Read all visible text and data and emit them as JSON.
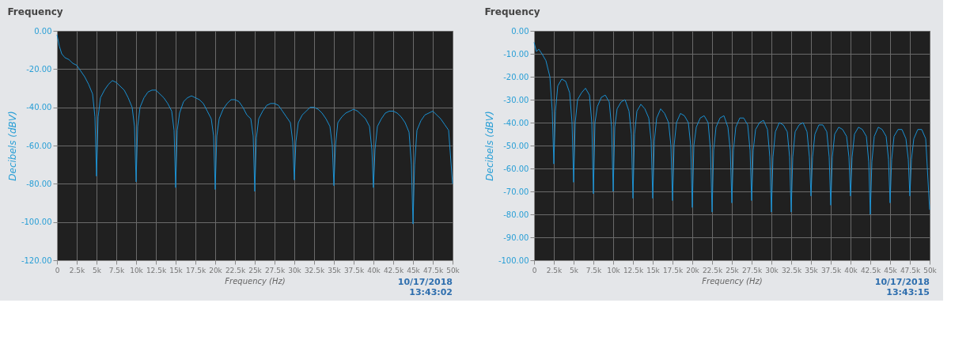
{
  "chart_data": [
    {
      "type": "line",
      "title": "Frequency",
      "xlabel": "Frequency (Hz)",
      "ylabel": "Decibels (dBV)",
      "grid": true,
      "legend": false,
      "marker": "none",
      "line_style": "solid",
      "annotations": [
        "10/17/2018\n13:43:02"
      ],
      "xlim": [
        0,
        50000
      ],
      "ylim": [
        -120,
        0
      ],
      "xticks": [
        0,
        {
          "value": 2500,
          "label": "2.5k"
        },
        {
          "value": 5000,
          "label": "5k"
        },
        {
          "value": 7500,
          "label": "7.5k"
        },
        {
          "value": 10000,
          "label": "10k"
        },
        {
          "value": 12500,
          "label": "12.5k"
        },
        {
          "value": 15000,
          "label": "15k"
        },
        {
          "value": 17500,
          "label": "17.5k"
        },
        {
          "value": 20000,
          "label": "20k"
        },
        {
          "value": 22500,
          "label": "22.5k"
        },
        {
          "value": 25000,
          "label": "25k"
        },
        {
          "value": 27500,
          "label": "27.5k"
        },
        {
          "value": 30000,
          "label": "30k"
        },
        {
          "value": 32500,
          "label": "32.5k"
        },
        {
          "value": 35000,
          "label": "35k"
        },
        {
          "value": 37500,
          "label": "37.5k"
        },
        {
          "value": 40000,
          "label": "40k"
        },
        {
          "value": 42500,
          "label": "42.5k"
        },
        {
          "value": 45000,
          "label": "45k"
        },
        {
          "value": 47500,
          "label": "47.5k"
        },
        {
          "value": 50000,
          "label": "50k"
        }
      ],
      "yticks": [
        {
          "value": 0,
          "label": "0.00"
        },
        {
          "value": -20,
          "label": "-20.00"
        },
        {
          "value": -40,
          "label": "-40.00"
        },
        {
          "value": -60,
          "label": "-60.00"
        },
        {
          "value": -80,
          "label": "-80.00"
        },
        {
          "value": -100,
          "label": "-100.00"
        },
        {
          "value": -120,
          "label": "-120.00"
        }
      ],
      "series": [
        {
          "color": "#1a8fd0",
          "x": [
            0,
            300,
            600,
            1000,
            1500,
            2000,
            2500,
            3000,
            3500,
            4000,
            4500,
            4800,
            5000,
            5200,
            5500,
            6000,
            6500,
            7000,
            7500,
            8000,
            8500,
            9000,
            9500,
            9800,
            10000,
            10200,
            10500,
            11000,
            11500,
            12000,
            12500,
            13000,
            13500,
            14000,
            14500,
            14800,
            15000,
            15200,
            15500,
            16000,
            16500,
            17000,
            17500,
            18000,
            18500,
            19000,
            19500,
            19800,
            20000,
            20200,
            20500,
            21000,
            21500,
            22000,
            22500,
            23000,
            23500,
            24000,
            24500,
            24800,
            25000,
            25200,
            25500,
            26000,
            26500,
            27000,
            27500,
            28000,
            28500,
            29000,
            29500,
            29800,
            30000,
            30200,
            30500,
            31000,
            31500,
            32000,
            32500,
            33000,
            33500,
            34000,
            34500,
            34800,
            35000,
            35200,
            35500,
            36000,
            36500,
            37000,
            37500,
            38000,
            38500,
            39000,
            39500,
            39800,
            40000,
            40200,
            40500,
            41000,
            41500,
            42000,
            42500,
            43000,
            43500,
            44000,
            44500,
            44800,
            45000,
            45200,
            45500,
            46000,
            46500,
            47000,
            47500,
            48000,
            48500,
            49000,
            49500,
            50000
          ],
          "values": [
            -2,
            -8,
            -12,
            -14,
            -15,
            -17,
            -18,
            -21,
            -24,
            -28,
            -33,
            -45,
            -76,
            -45,
            -35,
            -31,
            -28,
            -26,
            -27,
            -29,
            -31,
            -35,
            -40,
            -50,
            -79,
            -50,
            -40,
            -35,
            -32,
            -31,
            -31,
            -33,
            -35,
            -38,
            -42,
            -52,
            -82,
            -52,
            -43,
            -37,
            -35,
            -34,
            -35,
            -36,
            -38,
            -42,
            -46,
            -55,
            -83,
            -55,
            -46,
            -41,
            -38,
            -36,
            -36,
            -37,
            -40,
            -44,
            -46,
            -55,
            -84,
            -56,
            -46,
            -42,
            -39,
            -38,
            -38,
            -39,
            -42,
            -45,
            -48,
            -58,
            -78,
            -58,
            -48,
            -44,
            -42,
            -40,
            -40,
            -41,
            -43,
            -46,
            -50,
            -60,
            -81,
            -60,
            -48,
            -45,
            -43,
            -42,
            -41,
            -42,
            -44,
            -46,
            -50,
            -62,
            -82,
            -62,
            -50,
            -46,
            -43,
            -42,
            -42,
            -43,
            -45,
            -48,
            -53,
            -70,
            -101,
            -70,
            -52,
            -47,
            -44,
            -43,
            -42,
            -44,
            -46,
            -49,
            -52,
            -80
          ]
        }
      ]
    },
    {
      "type": "line",
      "title": "Frequency",
      "xlabel": "Frequency (Hz)",
      "ylabel": "Decibels (dBV)",
      "grid": true,
      "legend": false,
      "marker": "none",
      "line_style": "solid",
      "annotations": [
        "10/17/2018\n13:43:15"
      ],
      "xlim": [
        0,
        50000
      ],
      "ylim": [
        -100,
        0
      ],
      "xticks": [
        0,
        {
          "value": 2500,
          "label": "2.5k"
        },
        {
          "value": 5000,
          "label": "5k"
        },
        {
          "value": 7500,
          "label": "7.5k"
        },
        {
          "value": 10000,
          "label": "10k"
        },
        {
          "value": 12500,
          "label": "12.5k"
        },
        {
          "value": 15000,
          "label": "15k"
        },
        {
          "value": 17500,
          "label": "17.5k"
        },
        {
          "value": 20000,
          "label": "20k"
        },
        {
          "value": 22500,
          "label": "22.5k"
        },
        {
          "value": 25000,
          "label": "25k"
        },
        {
          "value": 27500,
          "label": "27.5k"
        },
        {
          "value": 30000,
          "label": "30k"
        },
        {
          "value": 32500,
          "label": "32.5k"
        },
        {
          "value": 35000,
          "label": "35k"
        },
        {
          "value": 37500,
          "label": "37.5k"
        },
        {
          "value": 40000,
          "label": "40k"
        },
        {
          "value": 42500,
          "label": "42.5k"
        },
        {
          "value": 45000,
          "label": "45k"
        },
        {
          "value": 47500,
          "label": "47.5k"
        },
        {
          "value": 50000,
          "label": "50k"
        }
      ],
      "yticks": [
        {
          "value": 0,
          "label": "0.00"
        },
        {
          "value": -10,
          "label": "-10.00"
        },
        {
          "value": -20,
          "label": "-20.00"
        },
        {
          "value": -30,
          "label": "-30.00"
        },
        {
          "value": -40,
          "label": "-40.00"
        },
        {
          "value": -50,
          "label": "-50.00"
        },
        {
          "value": -60,
          "label": "-60.00"
        },
        {
          "value": -70,
          "label": "-70.00"
        },
        {
          "value": -80,
          "label": "-80.00"
        },
        {
          "value": -90,
          "label": "-90.00"
        },
        {
          "value": -100,
          "label": "-100.00"
        }
      ],
      "series": [
        {
          "color": "#1a8fd0",
          "x": [
            0,
            300,
            600,
            1000,
            1500,
            2000,
            2300,
            2500,
            2700,
            3000,
            3500,
            4000,
            4500,
            4800,
            5000,
            5200,
            5500,
            6000,
            6500,
            7000,
            7300,
            7500,
            7700,
            8000,
            8500,
            9000,
            9500,
            9800,
            10000,
            10200,
            10500,
            11000,
            11500,
            12000,
            12300,
            12500,
            12700,
            13000,
            13500,
            14000,
            14500,
            14800,
            15000,
            15200,
            15500,
            16000,
            16500,
            17000,
            17300,
            17500,
            17700,
            18000,
            18500,
            19000,
            19500,
            19800,
            20000,
            20200,
            20500,
            21000,
            21500,
            22000,
            22300,
            22500,
            22700,
            23000,
            23500,
            24000,
            24500,
            24800,
            25000,
            25200,
            25500,
            26000,
            26500,
            27000,
            27300,
            27500,
            27700,
            28000,
            28500,
            29000,
            29500,
            29800,
            30000,
            30200,
            30500,
            31000,
            31500,
            32000,
            32300,
            32500,
            32700,
            33000,
            33500,
            34000,
            34500,
            34800,
            35000,
            35200,
            35500,
            36000,
            36500,
            37000,
            37300,
            37500,
            37700,
            38000,
            38500,
            39000,
            39500,
            39800,
            40000,
            40200,
            40500,
            41000,
            41500,
            42000,
            42300,
            42500,
            42700,
            43000,
            43500,
            44000,
            44500,
            44800,
            45000,
            45200,
            45500,
            46000,
            46500,
            47000,
            47300,
            47500,
            47700,
            48000,
            48500,
            49000,
            49500,
            50000
          ],
          "values": [
            -5,
            -9,
            -8,
            -10,
            -13,
            -20,
            -35,
            -58,
            -35,
            -24,
            -21,
            -22,
            -27,
            -40,
            -66,
            -40,
            -30,
            -27,
            -25,
            -28,
            -40,
            -71,
            -40,
            -33,
            -29,
            -28,
            -31,
            -42,
            -70,
            -42,
            -34,
            -31,
            -30,
            -35,
            -45,
            -73,
            -45,
            -35,
            -32,
            -34,
            -38,
            -48,
            -73,
            -48,
            -38,
            -34,
            -36,
            -40,
            -50,
            -74,
            -50,
            -40,
            -36,
            -37,
            -40,
            -50,
            -77,
            -50,
            -42,
            -38,
            -37,
            -40,
            -52,
            -79,
            -52,
            -42,
            -38,
            -37,
            -42,
            -52,
            -75,
            -52,
            -42,
            -38,
            -38,
            -41,
            -52,
            -74,
            -52,
            -43,
            -40,
            -39,
            -43,
            -55,
            -79,
            -55,
            -44,
            -40,
            -41,
            -44,
            -55,
            -79,
            -55,
            -44,
            -41,
            -40,
            -44,
            -55,
            -72,
            -55,
            -45,
            -41,
            -41,
            -44,
            -55,
            -76,
            -55,
            -45,
            -42,
            -43,
            -46,
            -55,
            -72,
            -55,
            -45,
            -42,
            -43,
            -46,
            -57,
            -80,
            -57,
            -46,
            -42,
            -43,
            -46,
            -56,
            -75,
            -56,
            -46,
            -43,
            -43,
            -47,
            -56,
            -72,
            -56,
            -47,
            -43,
            -43,
            -47,
            -78
          ]
        }
      ]
    }
  ]
}
